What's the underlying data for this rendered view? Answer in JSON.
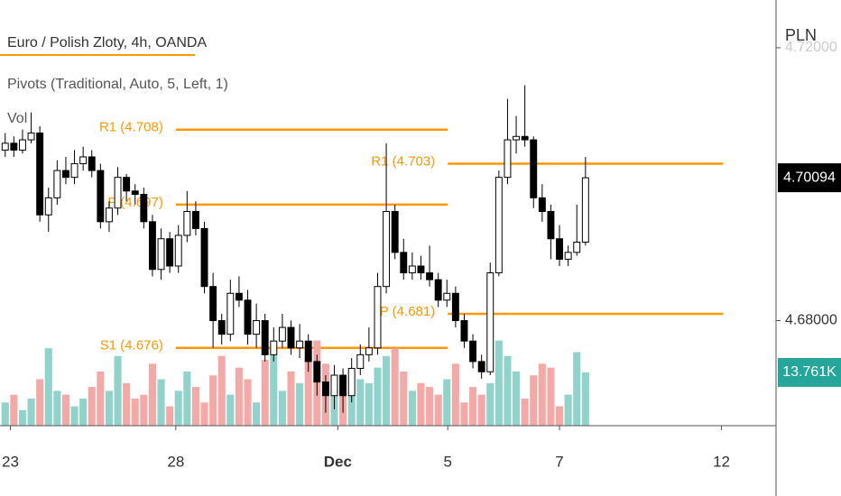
{
  "chart_data": {
    "type": "candlestick",
    "title": "Euro / Polish Zloty, 4h, OANDA",
    "indicator": "Pivots (Traditional, Auto, 5, Left, 1)",
    "volume_title": "Vol",
    "currency": "PLN",
    "ylim": [
      4.6646,
      4.727
    ],
    "yticks": [
      {
        "value": 4.68,
        "label": "4.68000"
      },
      {
        "value": 4.72,
        "label": "4.72000"
      }
    ],
    "xlim": [
      -0.6,
      89
    ],
    "xticks": [
      {
        "value": 0.6,
        "label": "23"
      },
      {
        "value": 19.7,
        "label": "28"
      },
      {
        "value": 38.4,
        "label": "Dec"
      },
      {
        "value": 51.1,
        "label": "5"
      },
      {
        "value": 64,
        "label": "7"
      },
      {
        "value": 82.7,
        "label": "12"
      }
    ],
    "open": [
      4.705,
      4.706,
      4.705,
      4.7065,
      4.7075,
      4.6955,
      4.698,
      4.702,
      4.701,
      4.703,
      4.704,
      4.702,
      4.6945,
      4.6965,
      4.701,
      4.699,
      4.6985,
      4.6945,
      4.6875,
      4.692,
      4.688,
      4.6925,
      4.696,
      4.6935,
      4.685,
      4.68,
      4.678,
      4.684,
      4.683,
      4.678,
      4.68,
      4.675,
      4.677,
      4.679,
      4.676,
      4.677,
      4.674,
      4.671,
      4.669,
      4.672,
      4.669,
      4.673,
      4.675,
      4.676,
      4.685,
      4.696,
      4.69,
      4.687,
      4.688,
      4.687,
      4.686,
      4.683,
      4.684,
      4.68,
      4.677,
      4.674,
      4.6725,
      4.687,
      4.701,
      4.7065,
      4.707,
      4.7065,
      4.698,
      4.696,
      4.692,
      4.689,
      4.69,
      4.6915
    ],
    "high": [
      4.7075,
      4.707,
      4.708,
      4.7105,
      4.7085,
      4.6995,
      4.7035,
      4.704,
      4.705,
      4.7055,
      4.705,
      4.703,
      4.6975,
      4.7025,
      4.7015,
      4.7,
      4.6995,
      4.6955,
      4.6935,
      4.693,
      4.694,
      4.699,
      4.6975,
      4.6945,
      4.687,
      4.681,
      4.686,
      4.6865,
      4.6845,
      4.6825,
      4.681,
      4.679,
      4.681,
      4.68,
      4.6795,
      4.678,
      4.675,
      4.672,
      4.6735,
      4.673,
      4.6745,
      4.6765,
      4.679,
      4.687,
      4.706,
      4.697,
      4.692,
      4.69,
      4.6895,
      4.691,
      4.687,
      4.686,
      4.685,
      4.681,
      4.678,
      4.675,
      4.6885,
      4.702,
      4.7125,
      4.71,
      4.7145,
      4.707,
      4.7,
      4.697,
      4.694,
      4.691,
      4.697,
      4.704
    ],
    "low": [
      4.704,
      4.704,
      4.7045,
      4.706,
      4.6945,
      4.693,
      4.697,
      4.7,
      4.7,
      4.702,
      4.701,
      4.6935,
      4.693,
      4.6955,
      4.6975,
      4.697,
      4.6935,
      4.6865,
      4.686,
      4.687,
      4.687,
      4.6915,
      4.6925,
      4.684,
      4.676,
      4.6765,
      4.677,
      4.682,
      4.6765,
      4.676,
      4.674,
      4.674,
      4.676,
      4.675,
      4.6745,
      4.6725,
      4.669,
      4.6665,
      4.667,
      4.6665,
      4.668,
      4.672,
      4.674,
      4.675,
      4.684,
      4.689,
      4.686,
      4.686,
      4.686,
      4.685,
      4.682,
      4.682,
      4.679,
      4.676,
      4.673,
      4.6715,
      4.672,
      4.6865,
      4.7,
      4.7045,
      4.7055,
      4.6965,
      4.6945,
      4.689,
      4.688,
      4.688,
      4.6895,
      4.691
    ],
    "close": [
      4.706,
      4.705,
      4.7065,
      4.7075,
      4.6955,
      4.698,
      4.702,
      4.701,
      4.703,
      4.704,
      4.702,
      4.6945,
      4.6965,
      4.701,
      4.699,
      4.6985,
      4.6945,
      4.6875,
      4.692,
      4.688,
      4.6925,
      4.696,
      4.6935,
      4.685,
      4.68,
      4.678,
      4.684,
      4.683,
      4.678,
      4.68,
      4.675,
      4.677,
      4.679,
      4.676,
      4.677,
      4.674,
      4.671,
      4.669,
      4.672,
      4.669,
      4.673,
      4.675,
      4.676,
      4.685,
      4.696,
      4.69,
      4.687,
      4.688,
      4.687,
      4.686,
      4.683,
      4.684,
      4.68,
      4.677,
      4.674,
      4.6725,
      4.687,
      4.701,
      4.7065,
      4.707,
      4.7065,
      4.698,
      4.696,
      4.692,
      4.689,
      4.69,
      4.6915,
      4.70094
    ],
    "volume": [
      6,
      8,
      4,
      7,
      12,
      20,
      9,
      8,
      5,
      7,
      10,
      14,
      9,
      18,
      11,
      7,
      8,
      16,
      12,
      5,
      9,
      14,
      10,
      6,
      13,
      18,
      8,
      15,
      12,
      6,
      17,
      20,
      9,
      14,
      11,
      18,
      22,
      16,
      10,
      13,
      8,
      12,
      11,
      15,
      18,
      20,
      14,
      9,
      11,
      10,
      8,
      12,
      16,
      6,
      10,
      8,
      11,
      22,
      18,
      14,
      7,
      13,
      16,
      15,
      5,
      8,
      19,
      13.761
    ],
    "volume_ylim": [
      0,
      110
    ],
    "volume_last_label": "13.761K",
    "up_color": "#ffffff",
    "down_color": "#000000",
    "volume_up_color": "#8fd3cb",
    "volume_down_color": "#f4a9a7",
    "pivot_color": "#ff9800",
    "pivots": [
      {
        "label": "R1 (4.708)",
        "value": 4.708,
        "start": 19.7,
        "end": 51.1
      },
      {
        "label": "P (4.697)",
        "value": 4.697,
        "start": 19.7,
        "end": 51.1
      },
      {
        "label": "S1 (4.676)",
        "value": 4.676,
        "start": 19.7,
        "end": 51.1
      },
      {
        "label": "R1 (4.703)",
        "value": 4.703,
        "start": 51.1,
        "end": 82.9
      },
      {
        "label": "P (4.681)",
        "value": 4.681,
        "start": 51.1,
        "end": 82.9
      }
    ]
  }
}
